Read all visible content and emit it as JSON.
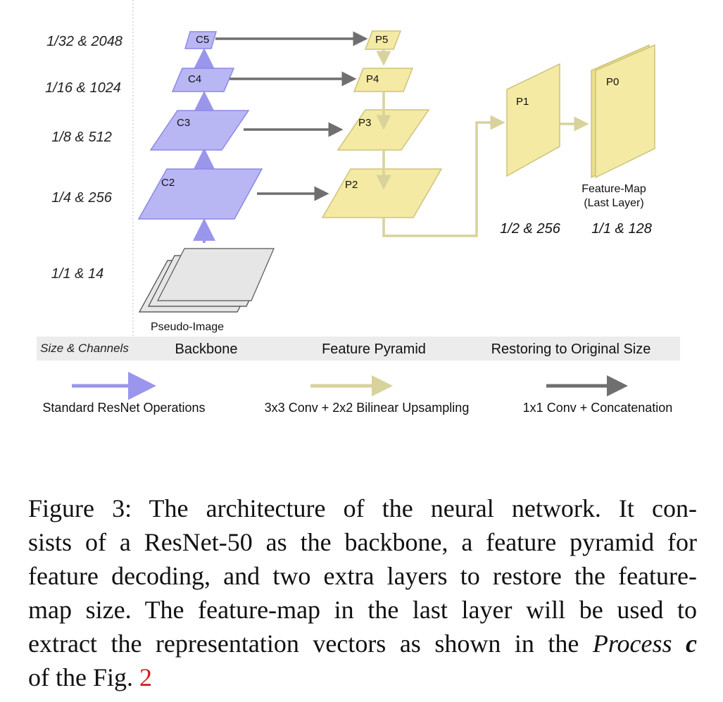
{
  "rows": [
    {
      "id": "r5",
      "label": "1/32 & 2048"
    },
    {
      "id": "r4",
      "label": "1/16 & 1024"
    },
    {
      "id": "r3",
      "label": "1/8 & 512"
    },
    {
      "id": "r2",
      "label": "1/4 & 256"
    },
    {
      "id": "r1",
      "label": "1/1 & 14"
    }
  ],
  "backbone_layers": [
    "C5",
    "C4",
    "C3",
    "C2"
  ],
  "pyramid_layers": [
    "P5",
    "P4",
    "P3",
    "P2"
  ],
  "restore_layers": {
    "p1": "P1",
    "p0": "P0"
  },
  "input_label": "Pseudo-Image",
  "feature_map_label": {
    "line1": "Feature-Map",
    "line2": "(Last Layer)"
  },
  "restore_sizes": {
    "p1": "1/2 & 256",
    "p0": "1/1 & 128"
  },
  "section_bar": {
    "size_channels": "Size & Channels",
    "backbone": "Backbone",
    "feature_pyramid": "Feature Pyramid",
    "restoring": "Restoring to Original Size"
  },
  "legend": [
    {
      "label": "Standard ResNet Operations",
      "color": "#9a96ec"
    },
    {
      "label": "3x3 Conv + 2x2 Bilinear Upsampling",
      "color": "#d8d29c"
    },
    {
      "label": "1x1 Conv + Concatenation",
      "color": "#6f6f6f"
    }
  ],
  "colors": {
    "backbone_fill": "#b9b6f4",
    "backbone_stroke": "#8c88e6",
    "pyramid_fill": "#f4eaa4",
    "pyramid_stroke": "#cdc37a",
    "input_fill": "#e6e6e6",
    "bar_bg": "#ececec"
  },
  "caption": {
    "line1": "Figure 3:  The architecture of the neural network.  It con-",
    "line2": "sists of a ResNet-50 as the backbone, a feature pyramid for",
    "line3": "feature decoding, and two extra layers to restore the feature-",
    "line4": "map size.  The feature-map in the last layer will be used to",
    "line5_pre": "extract the representation vectors as shown in the ",
    "line5_em": "Process",
    "line5_bold": "c",
    "line6_pre": "of the Fig. ",
    "line6_ref": "2"
  }
}
